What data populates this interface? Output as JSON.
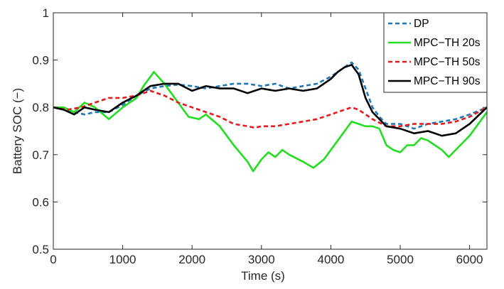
{
  "chart_data": {
    "type": "line",
    "title": "",
    "xlabel": "Time (s)",
    "ylabel": "Battery SOC (−)",
    "xlim": [
      0,
      6250
    ],
    "ylim": [
      0.5,
      1
    ],
    "xticks": [
      0,
      1000,
      2000,
      3000,
      4000,
      5000,
      6000
    ],
    "yticks": [
      0.5,
      0.6,
      0.7,
      0.8,
      0.9,
      1
    ],
    "xtick_labels": [
      "0",
      "1000",
      "2000",
      "3000",
      "4000",
      "5000",
      "6000"
    ],
    "ytick_labels": [
      "0.5",
      "0.6",
      "0.7",
      "0.8",
      "0.9",
      "1"
    ],
    "grid": false,
    "legend_position": "top-right",
    "series": [
      {
        "name": "DP",
        "color": "#1f77b4",
        "style": "dashed",
        "x": [
          0,
          150,
          300,
          450,
          600,
          800,
          1000,
          1200,
          1400,
          1600,
          1800,
          2000,
          2200,
          2400,
          2600,
          2800,
          3000,
          3200,
          3400,
          3600,
          3800,
          4000,
          4200,
          4300,
          4400,
          4500,
          4600,
          4700,
          4800,
          5000,
          5100,
          5200,
          5400,
          5600,
          5800,
          6000,
          6250
        ],
        "y": [
          0.8,
          0.795,
          0.79,
          0.785,
          0.79,
          0.79,
          0.805,
          0.825,
          0.84,
          0.845,
          0.848,
          0.845,
          0.84,
          0.845,
          0.85,
          0.85,
          0.845,
          0.85,
          0.84,
          0.845,
          0.85,
          0.865,
          0.885,
          0.895,
          0.88,
          0.84,
          0.8,
          0.78,
          0.765,
          0.765,
          0.76,
          0.755,
          0.765,
          0.77,
          0.775,
          0.785,
          0.8
        ]
      },
      {
        "name": "MPC−TH 20s",
        "color": "#22dd22",
        "style": "solid",
        "x": [
          0,
          150,
          300,
          450,
          600,
          800,
          1000,
          1200,
          1300,
          1450,
          1600,
          1800,
          1950,
          2100,
          2200,
          2400,
          2600,
          2800,
          2880,
          3000,
          3100,
          3200,
          3300,
          3400,
          3600,
          3750,
          3900,
          4100,
          4300,
          4400,
          4500,
          4600,
          4700,
          4800,
          4900,
          5000,
          5100,
          5200,
          5300,
          5400,
          5500,
          5600,
          5700,
          5800,
          6000,
          6250
        ],
        "y": [
          0.8,
          0.8,
          0.79,
          0.81,
          0.8,
          0.775,
          0.8,
          0.82,
          0.845,
          0.875,
          0.85,
          0.81,
          0.78,
          0.775,
          0.785,
          0.76,
          0.72,
          0.685,
          0.665,
          0.69,
          0.705,
          0.695,
          0.71,
          0.7,
          0.685,
          0.672,
          0.69,
          0.73,
          0.77,
          0.765,
          0.76,
          0.76,
          0.755,
          0.72,
          0.71,
          0.705,
          0.72,
          0.72,
          0.735,
          0.73,
          0.72,
          0.71,
          0.695,
          0.71,
          0.74,
          0.79
        ]
      },
      {
        "name": "MPC−TH 50s",
        "color": "#e41a1c",
        "style": "dashed",
        "x": [
          0,
          200,
          400,
          600,
          800,
          1000,
          1200,
          1400,
          1600,
          1800,
          2000,
          2200,
          2400,
          2600,
          2800,
          2900,
          3000,
          3200,
          3400,
          3600,
          3800,
          4000,
          4200,
          4300,
          4400,
          4600,
          4800,
          5000,
          5200,
          5400,
          5600,
          5800,
          6000,
          6250
        ],
        "y": [
          0.8,
          0.795,
          0.8,
          0.81,
          0.82,
          0.82,
          0.825,
          0.835,
          0.825,
          0.81,
          0.8,
          0.79,
          0.78,
          0.765,
          0.76,
          0.757,
          0.76,
          0.76,
          0.765,
          0.77,
          0.775,
          0.785,
          0.795,
          0.8,
          0.795,
          0.775,
          0.76,
          0.76,
          0.765,
          0.765,
          0.765,
          0.77,
          0.78,
          0.8
        ]
      },
      {
        "name": "MPC−TH 90s",
        "color": "#000000",
        "style": "solid",
        "x": [
          0,
          150,
          300,
          450,
          600,
          800,
          1000,
          1200,
          1400,
          1600,
          1800,
          2000,
          2200,
          2400,
          2600,
          2800,
          3000,
          3200,
          3400,
          3600,
          3800,
          4000,
          4100,
          4200,
          4300,
          4400,
          4500,
          4600,
          4700,
          4800,
          5000,
          5200,
          5400,
          5600,
          5800,
          6000,
          6250
        ],
        "y": [
          0.8,
          0.795,
          0.785,
          0.8,
          0.795,
          0.79,
          0.81,
          0.825,
          0.845,
          0.85,
          0.85,
          0.835,
          0.845,
          0.84,
          0.84,
          0.83,
          0.84,
          0.835,
          0.84,
          0.835,
          0.84,
          0.86,
          0.875,
          0.885,
          0.89,
          0.87,
          0.82,
          0.79,
          0.775,
          0.76,
          0.755,
          0.745,
          0.75,
          0.74,
          0.745,
          0.765,
          0.8
        ]
      }
    ]
  }
}
